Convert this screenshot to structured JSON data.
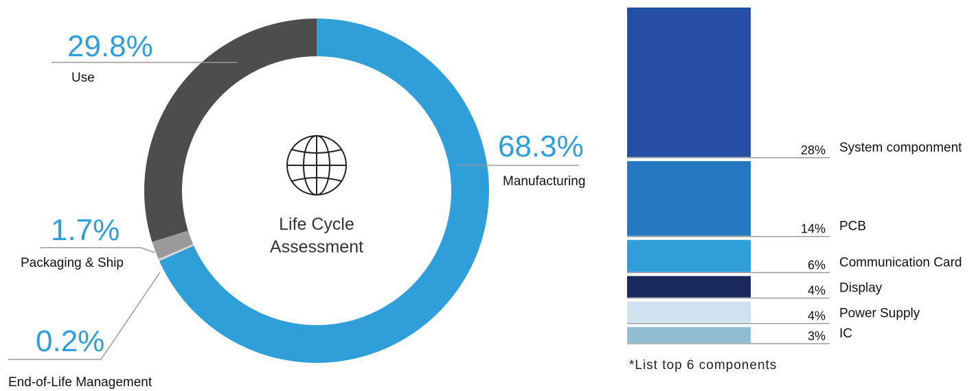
{
  "chart_data": [
    {
      "type": "pie",
      "variant": "donut",
      "center_title": [
        "Life Cycle",
        "Assessment"
      ],
      "center_icon": "globe-icon",
      "slices": [
        {
          "label": "Manufacturing",
          "value": 68.3,
          "value_text": "68.3%",
          "color": "#2E9FD8"
        },
        {
          "label": "End-of-Life Management",
          "value": 0.2,
          "value_text": "0.2%",
          "color": "#D6D6D6"
        },
        {
          "label": "Packaging & Ship",
          "value": 1.7,
          "value_text": "1.7%",
          "color": "#9A9A9A"
        },
        {
          "label": "Use",
          "value": 29.8,
          "value_text": "29.8%",
          "color": "#4D4D4D"
        }
      ],
      "label_color": "#2E9FD8"
    },
    {
      "type": "bar",
      "orientation": "stacked-vertical",
      "categories": [
        "System componment",
        "PCB",
        "Communication Card",
        "Display",
        "Power Supply",
        "IC"
      ],
      "values": [
        28,
        14,
        6,
        4,
        4,
        3
      ],
      "value_texts": [
        "28%",
        "14%",
        "6%",
        "4%",
        "4%",
        "3%"
      ],
      "colors": [
        "#234EA3",
        "#2579BE",
        "#2E9FD8",
        "#1B2A5E",
        "#D0E1F0",
        "#91BDD3"
      ],
      "footnote": "*List top 6 components"
    }
  ]
}
